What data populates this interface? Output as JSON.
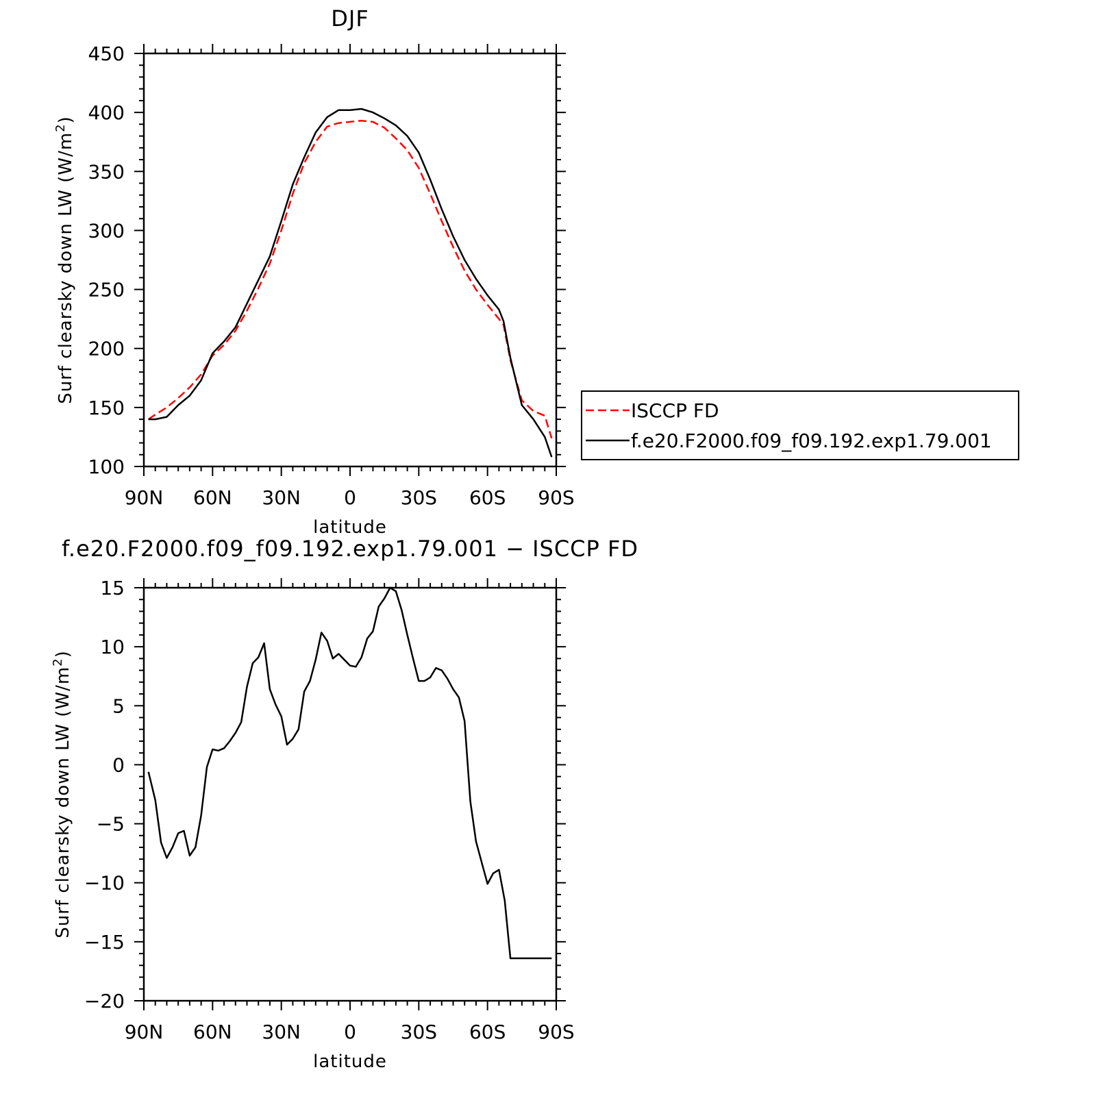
{
  "chart_data": [
    {
      "type": "line",
      "title": "DJF",
      "xlabel": "latitude",
      "ylabel_main": "Surf clearsky down LW (W/m",
      "ylabel_sup": "2",
      "ylabel_end": ")",
      "xlim": [
        -90,
        90
      ],
      "ylim": [
        100,
        450
      ],
      "xticks": [
        {
          "value": -90,
          "label": "90N"
        },
        {
          "value": -60,
          "label": "60N"
        },
        {
          "value": -30,
          "label": "30N"
        },
        {
          "value": 0,
          "label": "0"
        },
        {
          "value": 30,
          "label": "30S"
        },
        {
          "value": 60,
          "label": "60S"
        },
        {
          "value": 90,
          "label": "90S"
        }
      ],
      "yticks": [
        100,
        150,
        200,
        250,
        300,
        350,
        400,
        450
      ],
      "legend_position": "right",
      "series": [
        {
          "name": "ISCCP FD",
          "color": "#ff0000",
          "dash": "dashed",
          "x": [
            -88,
            -85,
            -80,
            -75,
            -70,
            -65,
            -60,
            -55,
            -50,
            -45,
            -40,
            -35,
            -30,
            -25,
            -20,
            -15,
            -10,
            -5,
            0,
            5,
            10,
            15,
            20,
            25,
            30,
            35,
            40,
            45,
            50,
            55,
            60,
            65,
            67,
            70,
            75,
            80,
            85,
            88
          ],
          "y": [
            140,
            144,
            150,
            158,
            167,
            178,
            194,
            203,
            215,
            232,
            251,
            272,
            300,
            331,
            357,
            375,
            388,
            391,
            392,
            393,
            392,
            387,
            378,
            368,
            353,
            331,
            308,
            286,
            266,
            250,
            237,
            225,
            220,
            190,
            156,
            147,
            143,
            124
          ]
        },
        {
          "name": "f.e20.F2000.f09_f09.192.exp1.79.001",
          "color": "#000000",
          "dash": "solid",
          "x": [
            -88,
            -85,
            -80,
            -75,
            -70,
            -65,
            -60,
            -55,
            -50,
            -45,
            -40,
            -35,
            -30,
            -25,
            -20,
            -15,
            -10,
            -5,
            0,
            5,
            10,
            15,
            20,
            25,
            30,
            35,
            40,
            45,
            50,
            55,
            60,
            65,
            67,
            70,
            75,
            80,
            85,
            88
          ],
          "y": [
            140,
            140,
            142,
            152,
            160,
            173,
            196,
            206,
            218,
            238,
            258,
            278,
            308,
            339,
            362,
            383,
            396,
            402,
            402,
            403,
            400,
            395,
            389,
            380,
            366,
            343,
            318,
            295,
            275,
            259,
            245,
            233,
            223,
            192,
            152,
            140,
            125,
            108
          ]
        }
      ]
    },
    {
      "type": "line",
      "title": "f.e20.F2000.f09_f09.192.exp1.79.001 − ISCCP FD",
      "xlabel": "latitude",
      "ylabel_main": "Surf clearsky down LW (W/m",
      "ylabel_sup": "2",
      "ylabel_end": ")",
      "xlim": [
        -90,
        90
      ],
      "ylim": [
        -20,
        15
      ],
      "xticks": [
        {
          "value": -90,
          "label": "90N"
        },
        {
          "value": -60,
          "label": "60N"
        },
        {
          "value": -30,
          "label": "30N"
        },
        {
          "value": 0,
          "label": "0"
        },
        {
          "value": 30,
          "label": "30S"
        },
        {
          "value": 60,
          "label": "60S"
        },
        {
          "value": 90,
          "label": "90S"
        }
      ],
      "yticks": [
        {
          "value": -20,
          "label": "−20"
        },
        {
          "value": -15,
          "label": "−15"
        },
        {
          "value": -10,
          "label": "−10"
        },
        {
          "value": -5,
          "label": "−5"
        },
        {
          "value": 0,
          "label": "0"
        },
        {
          "value": 5,
          "label": "5"
        },
        {
          "value": 10,
          "label": "10"
        },
        {
          "value": 15,
          "label": "15"
        }
      ],
      "series": [
        {
          "name": "",
          "color": "#000000",
          "dash": "solid",
          "x": [
            -88,
            -85,
            -82.5,
            -80,
            -77.5,
            -75,
            -72.5,
            -70,
            -67.5,
            -65,
            -62.5,
            -60,
            -57.5,
            -55,
            -52.5,
            -50,
            -47.5,
            -45,
            -42.5,
            -40,
            -37.5,
            -35,
            -32.5,
            -30,
            -27.5,
            -25,
            -22.5,
            -20,
            -17.5,
            -15,
            -12.5,
            -10,
            -7.5,
            -5,
            -2.5,
            0,
            2.5,
            5,
            7.5,
            10,
            12.5,
            15,
            17.5,
            20,
            22.5,
            25,
            27.5,
            30,
            32.5,
            35,
            37.5,
            40,
            42.5,
            45,
            47.5,
            50,
            52.5,
            55,
            57.5,
            60,
            62.5,
            65,
            67.5,
            70,
            72.5,
            75,
            77.5,
            80,
            82.5,
            85,
            87.5,
            88
          ],
          "y": [
            -0.6,
            -3.0,
            -6.6,
            -7.9,
            -7.0,
            -5.8,
            -5.6,
            -7.7,
            -7.0,
            -4.3,
            -0.2,
            1.3,
            1.2,
            1.4,
            2.0,
            2.7,
            3.6,
            6.6,
            8.6,
            9.1,
            10.3,
            6.4,
            5.1,
            4.1,
            1.7,
            2.2,
            3.0,
            6.2,
            7.1,
            8.9,
            11.2,
            10.5,
            9.0,
            9.4,
            8.9,
            8.4,
            8.3,
            9.1,
            10.7,
            11.3,
            13.4,
            14.1,
            15.0,
            14.7,
            13.1,
            11.0,
            9.0,
            7.1,
            7.1,
            7.4,
            8.2,
            8.0,
            7.3,
            6.4,
            5.7,
            3.7,
            -3.1,
            -6.5,
            -8.3,
            -10.1,
            -9.2,
            -8.9,
            -11.5,
            -16.4,
            -16.4,
            -16.4,
            -16.4,
            -16.4,
            -16.4,
            -16.4,
            -16.4,
            -16.4
          ]
        }
      ]
    }
  ]
}
